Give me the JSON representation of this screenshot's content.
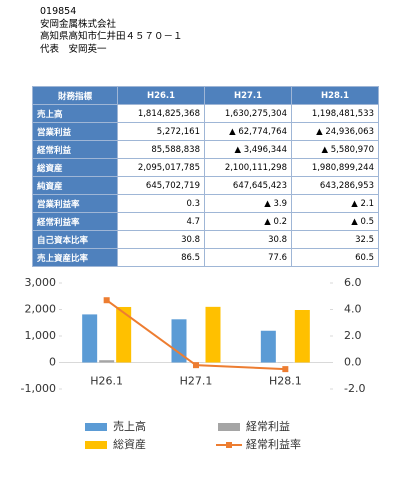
{
  "header": {
    "code": "019854",
    "company": "安岡金属株式会社",
    "address": "高知県高知市仁井田４５７０－１",
    "representative": "代表　安岡英一"
  },
  "table": {
    "columns": [
      "財務指標",
      "H26.1",
      "H27.1",
      "H28.1"
    ],
    "rows": [
      {
        "cells": [
          "売上高",
          "1,814,825,368",
          "1,630,275,304",
          "1,198,481,533"
        ]
      },
      {
        "cells": [
          "営業利益",
          "5,272,161",
          "▲ 62,774,764",
          "▲ 24,936,063"
        ]
      },
      {
        "cells": [
          "経常利益",
          "85,588,838",
          "▲ 3,496,344",
          "▲ 5,580,970"
        ]
      },
      {
        "cells": [
          "総資産",
          "2,095,017,785",
          "2,100,111,298",
          "1,980,899,244"
        ]
      },
      {
        "cells": [
          "純資産",
          "645,702,719",
          "647,645,423",
          "643,286,953"
        ]
      },
      {
        "cells": [
          "営業利益率",
          "0.3",
          "▲ 3.9",
          "▲ 2.1"
        ]
      },
      {
        "cells": [
          "経常利益率",
          "4.7",
          "▲ 0.2",
          "▲ 0.5"
        ]
      },
      {
        "cells": [
          "自己資本比率",
          "30.8",
          "30.8",
          "32.5"
        ]
      },
      {
        "cells": [
          "売上資産比率",
          "86.5",
          "77.6",
          "60.5"
        ]
      }
    ]
  },
  "chart_data": {
    "type": "bar",
    "categories": [
      "H26.1",
      "H27.1",
      "H28.1"
    ],
    "series": [
      {
        "name": "売上高",
        "color": "#5b9bd5",
        "values": [
          1815,
          1630,
          1198
        ]
      },
      {
        "name": "経常利益",
        "color": "#a5a5a5",
        "values": [
          86,
          -3,
          -6
        ]
      },
      {
        "name": "総資産",
        "color": "#ffc000",
        "values": [
          2095,
          2100,
          1981
        ]
      },
      {
        "name": "経常利益率",
        "color": "#ed7d31",
        "type": "line",
        "axis": "y2",
        "values": [
          4.7,
          -0.2,
          -0.5
        ]
      }
    ],
    "ylim": [
      -1000,
      3000
    ],
    "yticks": [
      {
        "value": 3000,
        "label": "3,000"
      },
      {
        "value": 2000,
        "label": "2,000"
      },
      {
        "value": 1000,
        "label": "1,000"
      },
      0,
      {
        "value": -1000,
        "label": "-1,000"
      }
    ],
    "y2lim": [
      -2,
      6
    ],
    "y2ticks": [
      {
        "value": 6,
        "label": "6.0"
      },
      {
        "value": 4,
        "label": "4.0"
      },
      {
        "value": 2,
        "label": "2.0"
      },
      {
        "value": 0,
        "label": "0.0"
      },
      {
        "value": -2,
        "label": "-2.0"
      }
    ],
    "grid": false,
    "legend": "bottom"
  }
}
